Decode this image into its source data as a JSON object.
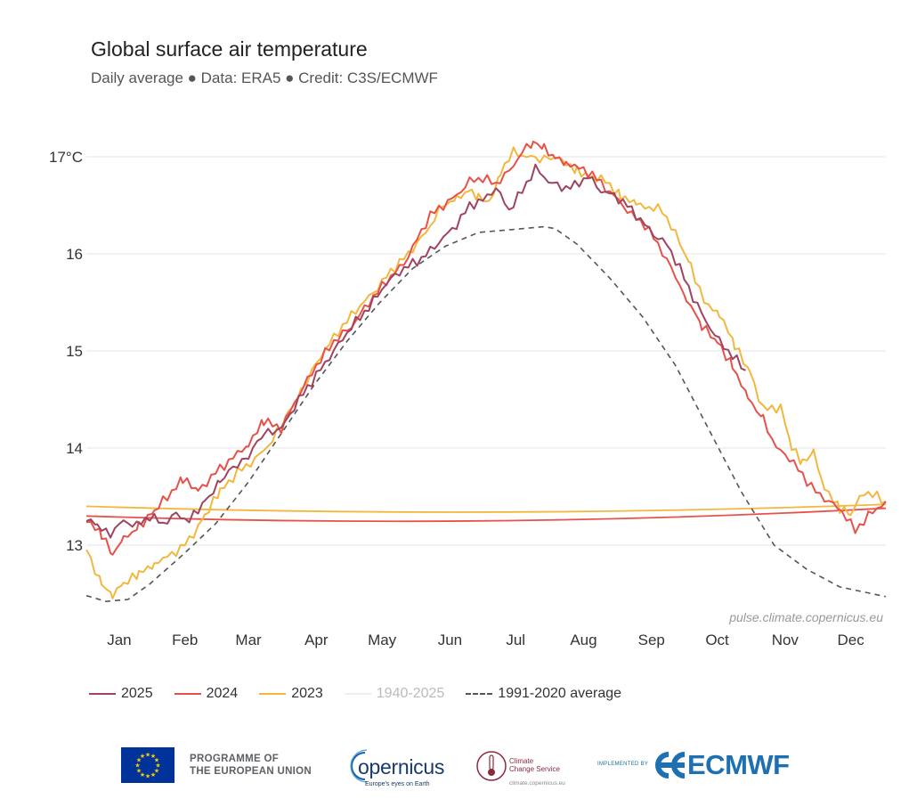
{
  "chart_data": {
    "type": "line",
    "title": "Global surface air temperature",
    "subtitle": "Daily average ● Data: ERA5 ● Credit: C3S/ECMWF",
    "ylabel": "°C",
    "ylim": [
      12.35,
      17.35
    ],
    "yticks": [
      {
        "value": 13,
        "label": "13"
      },
      {
        "value": 14,
        "label": "14"
      },
      {
        "value": 15,
        "label": "15"
      },
      {
        "value": 16,
        "label": "16"
      },
      {
        "value": 17,
        "label": "17°C"
      }
    ],
    "xlim": [
      1,
      366
    ],
    "months": [
      {
        "label": "Jan",
        "day": 16
      },
      {
        "label": "Feb",
        "day": 46
      },
      {
        "label": "Mar",
        "day": 75
      },
      {
        "label": "Apr",
        "day": 106
      },
      {
        "label": "May",
        "day": 136
      },
      {
        "label": "Jun",
        "day": 167
      },
      {
        "label": "Jul",
        "day": 197
      },
      {
        "label": "Aug",
        "day": 228
      },
      {
        "label": "Sep",
        "day": 259
      },
      {
        "label": "Oct",
        "day": 289
      },
      {
        "label": "Nov",
        "day": 320
      },
      {
        "label": "Dec",
        "day": 350
      }
    ],
    "watermark": "pulse.climate.copernicus.eu",
    "series": [
      {
        "name": "1991-2020 average",
        "color": "#555555",
        "dash": true,
        "days": [
          1,
          10,
          20,
          30,
          45,
          60,
          75,
          90,
          105,
          120,
          135,
          150,
          165,
          180,
          195,
          210,
          215,
          225,
          240,
          255,
          270,
          285,
          300,
          315,
          330,
          345,
          366
        ],
        "values": [
          12.48,
          12.42,
          12.44,
          12.6,
          12.9,
          13.22,
          13.65,
          14.15,
          14.65,
          15.1,
          15.5,
          15.85,
          16.08,
          16.22,
          16.25,
          16.28,
          16.26,
          16.1,
          15.75,
          15.35,
          14.85,
          14.2,
          13.55,
          13.0,
          12.75,
          12.57,
          12.47
        ]
      },
      {
        "name": "2023",
        "color": "#f2b73d",
        "dash": false,
        "days": [
          1,
          8,
          13,
          18,
          25,
          32,
          40,
          48,
          55,
          62,
          70,
          78,
          86,
          93,
          100,
          108,
          116,
          124,
          132,
          140,
          148,
          156,
          163,
          170,
          175,
          180,
          185,
          190,
          196,
          202,
          208,
          213,
          218,
          225,
          232,
          238,
          245,
          252,
          258,
          264,
          270,
          277,
          283,
          290,
          297,
          304,
          310,
          318,
          323,
          328,
          333,
          338,
          345,
          350,
          356,
          362,
          366
        ],
        "values": [
          12.95,
          12.6,
          12.5,
          12.6,
          12.7,
          12.82,
          12.9,
          13.05,
          13.3,
          13.55,
          13.75,
          13.88,
          14.08,
          14.35,
          14.62,
          14.95,
          15.2,
          15.42,
          15.6,
          15.82,
          16.0,
          16.22,
          16.48,
          16.55,
          16.65,
          16.6,
          16.52,
          16.85,
          17.05,
          17.0,
          16.98,
          17.0,
          16.95,
          16.85,
          16.8,
          16.75,
          16.6,
          16.5,
          16.48,
          16.45,
          16.2,
          15.88,
          15.5,
          15.4,
          15.05,
          14.78,
          14.4,
          14.42,
          14.0,
          13.85,
          13.95,
          13.6,
          13.38,
          13.32,
          13.55,
          13.5,
          13.45
        ]
      },
      {
        "name": "2024",
        "color": "#e8514a",
        "dash": false,
        "days": [
          1,
          8,
          13,
          18,
          25,
          32,
          38,
          45,
          52,
          60,
          68,
          75,
          82,
          90,
          98,
          106,
          114,
          122,
          130,
          138,
          146,
          152,
          158,
          164,
          170,
          176,
          182,
          188,
          194,
          200,
          205,
          210,
          215,
          220,
          226,
          232,
          238,
          244,
          250,
          256,
          262,
          268,
          275,
          282,
          289,
          296,
          303,
          310,
          316,
          322,
          328,
          334,
          340,
          346,
          352,
          358,
          362,
          366
        ],
        "values": [
          13.28,
          13.1,
          12.9,
          13.05,
          13.2,
          13.35,
          13.5,
          13.68,
          13.55,
          13.75,
          13.9,
          14.05,
          14.28,
          14.2,
          14.55,
          14.85,
          15.1,
          15.25,
          15.5,
          15.72,
          15.9,
          16.15,
          16.4,
          16.5,
          16.6,
          16.75,
          16.78,
          16.72,
          16.85,
          17.05,
          17.15,
          17.08,
          17.0,
          16.95,
          16.88,
          16.82,
          16.68,
          16.55,
          16.4,
          16.3,
          16.1,
          15.85,
          15.55,
          15.25,
          15.1,
          14.85,
          14.5,
          14.3,
          14.0,
          13.9,
          13.72,
          13.55,
          13.45,
          13.35,
          13.15,
          13.3,
          13.38,
          13.45
        ]
      },
      {
        "name": "2025",
        "color": "#9e4460",
        "dash": false,
        "days": [
          1,
          6,
          12,
          18,
          24,
          30,
          36,
          42,
          48,
          55,
          62,
          68,
          75,
          82,
          90,
          98,
          106,
          114,
          122,
          130,
          138,
          146,
          154,
          162,
          170,
          176,
          182,
          188,
          194,
          200,
          206,
          212,
          218,
          224,
          230,
          236,
          242,
          248,
          254,
          260,
          266,
          272,
          278,
          284,
          290,
          296,
          302
        ],
        "values": [
          13.28,
          13.18,
          13.12,
          13.25,
          13.2,
          13.3,
          13.22,
          13.32,
          13.25,
          13.45,
          13.65,
          13.8,
          13.92,
          14.15,
          14.2,
          14.5,
          14.75,
          15.0,
          15.25,
          15.45,
          15.7,
          15.85,
          15.95,
          16.12,
          16.3,
          16.5,
          16.55,
          16.68,
          16.45,
          16.65,
          16.88,
          16.75,
          16.68,
          16.7,
          16.8,
          16.65,
          16.6,
          16.5,
          16.35,
          16.2,
          16.1,
          15.85,
          15.55,
          15.3,
          15.1,
          14.95,
          14.8
        ]
      }
    ],
    "flat_lines": [
      {
        "series": "2023",
        "start": 13.4,
        "mid": 13.34,
        "end": 13.42
      },
      {
        "series": "2024",
        "start": 13.3,
        "mid": 13.25,
        "end": 13.38
      }
    ]
  },
  "legend": [
    {
      "label": "2025",
      "color": "#9e4460",
      "style": "solid",
      "faded": false
    },
    {
      "label": "2024",
      "color": "#e8514a",
      "style": "solid",
      "faded": false
    },
    {
      "label": "2023",
      "color": "#f2b73d",
      "style": "solid",
      "faded": false
    },
    {
      "label": "1940-2025",
      "color": "#eeeeee",
      "style": "solid",
      "faded": true
    },
    {
      "label": "1991-2020 average",
      "color": "#555555",
      "style": "dashed",
      "faded": false
    }
  ],
  "footer": {
    "eu_line1": "PROGRAMME OF",
    "eu_line2": "THE EUROPEAN UNION",
    "copernicus_word": "opernicus",
    "copernicus_tag": "Europe's eyes on Earth",
    "c3s_line1": "Climate",
    "c3s_line2": "Change Service",
    "c3s_url": "climate.copernicus.eu",
    "implemented_by": "IMPLEMENTED BY",
    "ecmwf_word": "ECMWF"
  }
}
